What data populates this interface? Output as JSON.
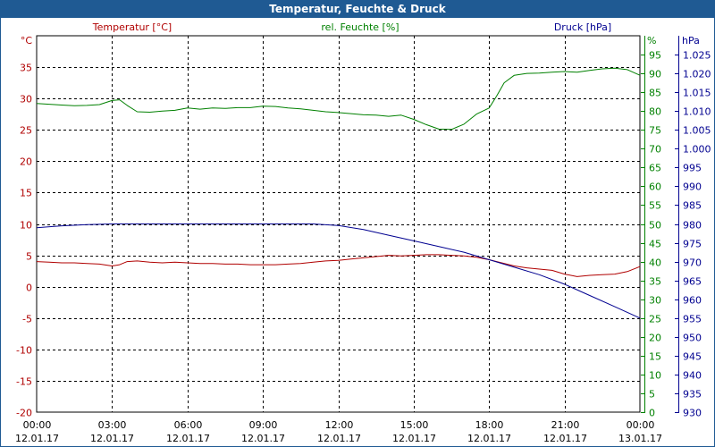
{
  "window": {
    "title": "Temperatur, Feuchte & Druck"
  },
  "chart_data": {
    "type": "line",
    "title": "Temperatur, Feuchte & Druck",
    "colors": {
      "temperature": "#b00000",
      "humidity": "#008000",
      "pressure": "#000090",
      "grid": "#000000"
    },
    "x_ticks": [
      {
        "time": "00:00",
        "date": "12.01.17"
      },
      {
        "time": "03:00",
        "date": "12.01.17"
      },
      {
        "time": "06:00",
        "date": "12.01.17"
      },
      {
        "time": "09:00",
        "date": "12.01.17"
      },
      {
        "time": "12:00",
        "date": "12.01.17"
      },
      {
        "time": "15:00",
        "date": "12.01.17"
      },
      {
        "time": "18:00",
        "date": "12.01.17"
      },
      {
        "time": "21:00",
        "date": "12.01.17"
      },
      {
        "time": "00:00",
        "date": "13.01.17"
      }
    ],
    "x_range_hours": [
      0,
      24
    ],
    "axes": {
      "temperature": {
        "label": "Temperatur [°C]",
        "unit": "°C",
        "range": [
          -20,
          40
        ],
        "ticks": [
          "35",
          "30",
          "25",
          "20",
          "15",
          "10",
          "5",
          "0",
          "-5",
          "-10",
          "-15",
          "-20"
        ],
        "tick_values": [
          35,
          30,
          25,
          20,
          15,
          10,
          5,
          0,
          -5,
          -10,
          -15,
          -20
        ]
      },
      "humidity": {
        "label": "rel. Feuchte [%]",
        "unit": "%",
        "range": [
          0,
          100
        ],
        "ticks": [
          "95",
          "90",
          "85",
          "80",
          "75",
          "70",
          "65",
          "60",
          "55",
          "50",
          "45",
          "40",
          "35",
          "30",
          "25",
          "20",
          "15",
          "10",
          "5",
          "0"
        ],
        "tick_values": [
          95,
          90,
          85,
          80,
          75,
          70,
          65,
          60,
          55,
          50,
          45,
          40,
          35,
          30,
          25,
          20,
          15,
          10,
          5,
          0
        ]
      },
      "pressure": {
        "label": "Druck [hPa]",
        "unit": "hPa",
        "range": [
          930,
          1030
        ],
        "ticks": [
          "1.025",
          "1.020",
          "1.015",
          "1.010",
          "1.005",
          "1.000",
          "995",
          "990",
          "985",
          "980",
          "975",
          "970",
          "965",
          "960",
          "955",
          "950",
          "945",
          "940",
          "935",
          "930"
        ],
        "tick_values": [
          1025,
          1020,
          1015,
          1010,
          1005,
          1000,
          995,
          990,
          985,
          980,
          975,
          970,
          965,
          960,
          955,
          950,
          945,
          940,
          935,
          930
        ]
      }
    },
    "grid": true,
    "series": [
      {
        "name": "Temperatur [°C]",
        "axis": "temperature",
        "x": [
          0,
          0.5,
          1,
          1.5,
          2,
          2.5,
          3,
          3.3,
          3.6,
          4,
          4.5,
          5,
          5.5,
          6,
          6.5,
          7,
          7.5,
          8,
          8.5,
          9,
          9.5,
          10,
          10.5,
          11,
          11.5,
          12,
          12.5,
          13,
          13.5,
          14,
          14.5,
          15,
          15.5,
          16,
          16.5,
          17,
          17.5,
          18,
          18.5,
          19,
          19.5,
          20,
          20.5,
          21,
          21.5,
          22,
          22.5,
          23,
          23.5,
          24
        ],
        "values": [
          4.0,
          3.9,
          3.8,
          3.8,
          3.7,
          3.6,
          3.3,
          3.5,
          4.0,
          4.1,
          3.9,
          3.8,
          3.9,
          3.8,
          3.7,
          3.7,
          3.6,
          3.6,
          3.5,
          3.5,
          3.5,
          3.6,
          3.7,
          3.9,
          4.1,
          4.2,
          4.4,
          4.6,
          4.8,
          5.0,
          4.9,
          5.0,
          5.1,
          5.1,
          5.0,
          4.9,
          4.7,
          4.3,
          3.8,
          3.3,
          3.0,
          2.8,
          2.6,
          2.0,
          1.6,
          1.8,
          1.9,
          2.0,
          2.4,
          3.2
        ]
      },
      {
        "name": "rel. Feuchte [%]",
        "axis": "humidity",
        "x": [
          0,
          0.5,
          1,
          1.5,
          2,
          2.5,
          3,
          3.3,
          3.6,
          4,
          4.5,
          5,
          5.5,
          6,
          6.5,
          7,
          7.5,
          8,
          8.5,
          9,
          9.5,
          10,
          10.5,
          11,
          11.5,
          12,
          12.5,
          13,
          13.5,
          14,
          14.5,
          15,
          15.5,
          16,
          16.5,
          17,
          17.5,
          18,
          18.3,
          18.6,
          19,
          19.5,
          20,
          20.5,
          21,
          21.5,
          22,
          22.5,
          23,
          23.5,
          24
        ],
        "values": [
          82.0,
          81.8,
          81.6,
          81.4,
          81.5,
          81.7,
          82.8,
          83.0,
          81.5,
          79.8,
          79.7,
          80.0,
          80.2,
          80.8,
          80.5,
          80.8,
          80.7,
          80.9,
          80.9,
          81.3,
          81.2,
          80.8,
          80.6,
          80.2,
          79.8,
          79.6,
          79.3,
          79.0,
          78.9,
          78.6,
          78.9,
          77.8,
          76.4,
          75.2,
          75.1,
          76.5,
          79.2,
          80.8,
          84.0,
          87.5,
          89.5,
          90.0,
          90.1,
          90.3,
          90.5,
          90.3,
          90.8,
          91.2,
          91.4,
          91.0,
          89.5
        ]
      },
      {
        "name": "Druck [hPa]",
        "axis": "pressure",
        "x": [
          0,
          1,
          2,
          3,
          4,
          5,
          6,
          7,
          8,
          9,
          10,
          11,
          12,
          13,
          14,
          15,
          16,
          17,
          18,
          19,
          20,
          21,
          22,
          23,
          24
        ],
        "values": [
          979.0,
          979.5,
          979.8,
          980.0,
          980.0,
          980.0,
          980.0,
          980.0,
          980.0,
          980.0,
          980.0,
          980.0,
          979.6,
          978.5,
          977.0,
          975.5,
          974.0,
          972.5,
          970.5,
          968.5,
          966.5,
          964.0,
          961.0,
          958.0,
          955.0
        ]
      }
    ]
  }
}
